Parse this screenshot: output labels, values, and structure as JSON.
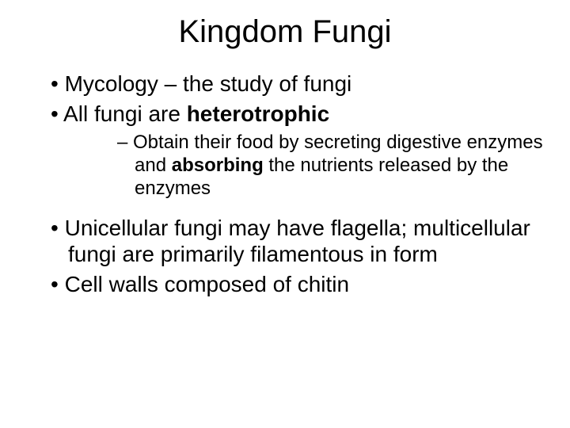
{
  "title": "Kingdom Fungi",
  "bullets": {
    "b1_pre": "Mycology ",
    "b1_dash": "– ",
    "b1_post": "the study of fungi",
    "b2_pre": "All fungi are ",
    "b2_bold": "heterotrophic",
    "sub1_pre": "Obtain their food by secreting digestive enzymes and ",
    "sub1_bold": "absorbing ",
    "sub1_post": "the nutrients released by the enzymes",
    "b3": "Unicellular fungi may have flagella; multicellular fungi are primarily filamentous in form",
    "b4": "Cell walls composed of chitin"
  },
  "style": {
    "background_color": "#ffffff",
    "text_color": "#000000",
    "title_fontsize": 40,
    "body_fontsize": 28,
    "sub_fontsize": 24,
    "font_family": "Arial"
  }
}
